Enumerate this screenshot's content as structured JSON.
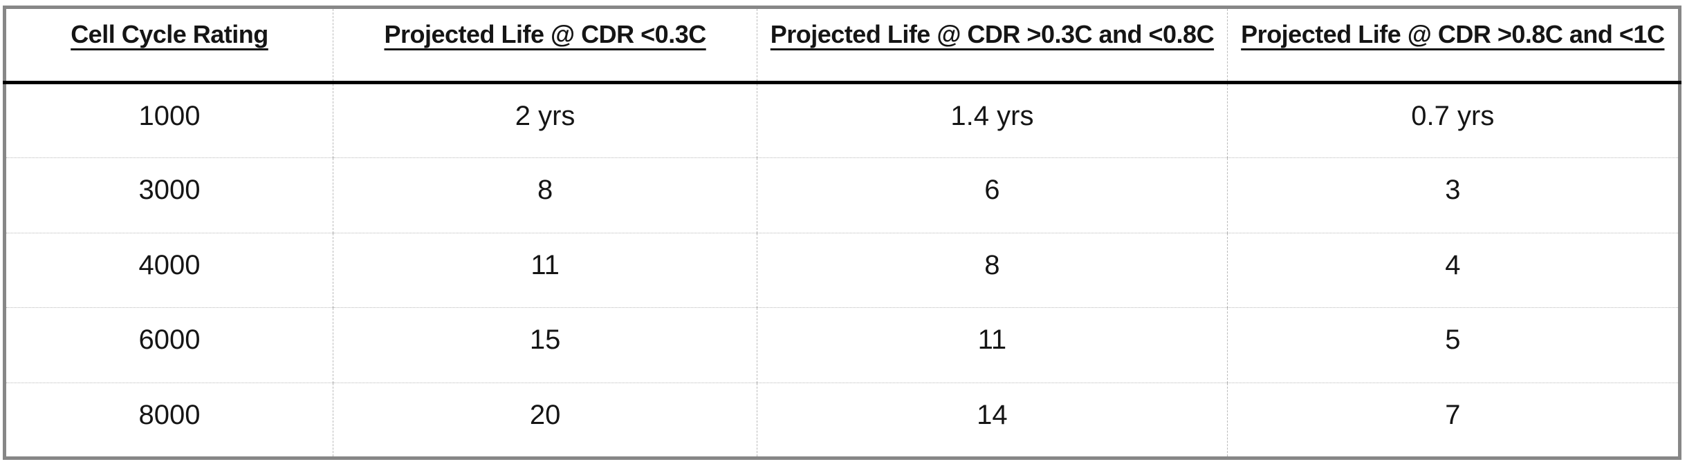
{
  "table": {
    "name": "cell-cycle-projected-life-table",
    "columns": [
      {
        "label": "Cell Cycle Rating"
      },
      {
        "label": "Projected Life @ CDR <0.3C"
      },
      {
        "label": "Projected Life @ CDR >0.3C and <0.8C"
      },
      {
        "label": "Projected Life @ CDR >0.8C and <1C"
      }
    ],
    "rows": [
      [
        "1000",
        "2 yrs",
        "1.4 yrs",
        "0.7 yrs"
      ],
      [
        "3000",
        "8",
        "6",
        "3"
      ],
      [
        "4000",
        "11",
        "8",
        "4"
      ],
      [
        "6000",
        "15",
        "11",
        "5"
      ],
      [
        "8000",
        "20",
        "14",
        "7"
      ]
    ]
  },
  "chart_data": {
    "type": "table",
    "title": "",
    "columns": [
      "Cell Cycle Rating",
      "Projected Life @ CDR <0.3C",
      "Projected Life @ CDR >0.3C and <0.8C",
      "Projected Life @ CDR >0.8C and <1C"
    ],
    "rows": [
      [
        "1000",
        "2 yrs",
        "1.4 yrs",
        "0.7 yrs"
      ],
      [
        "3000",
        "8",
        "6",
        "3"
      ],
      [
        "4000",
        "11",
        "8",
        "4"
      ],
      [
        "6000",
        "15",
        "11",
        "5"
      ],
      [
        "8000",
        "20",
        "14",
        "7"
      ]
    ]
  },
  "colors": {
    "outer_border": "#878787",
    "header_rule": "#000000",
    "grid_lines": "#b9b9b9",
    "text": "#151515",
    "background": "#ffffff"
  }
}
